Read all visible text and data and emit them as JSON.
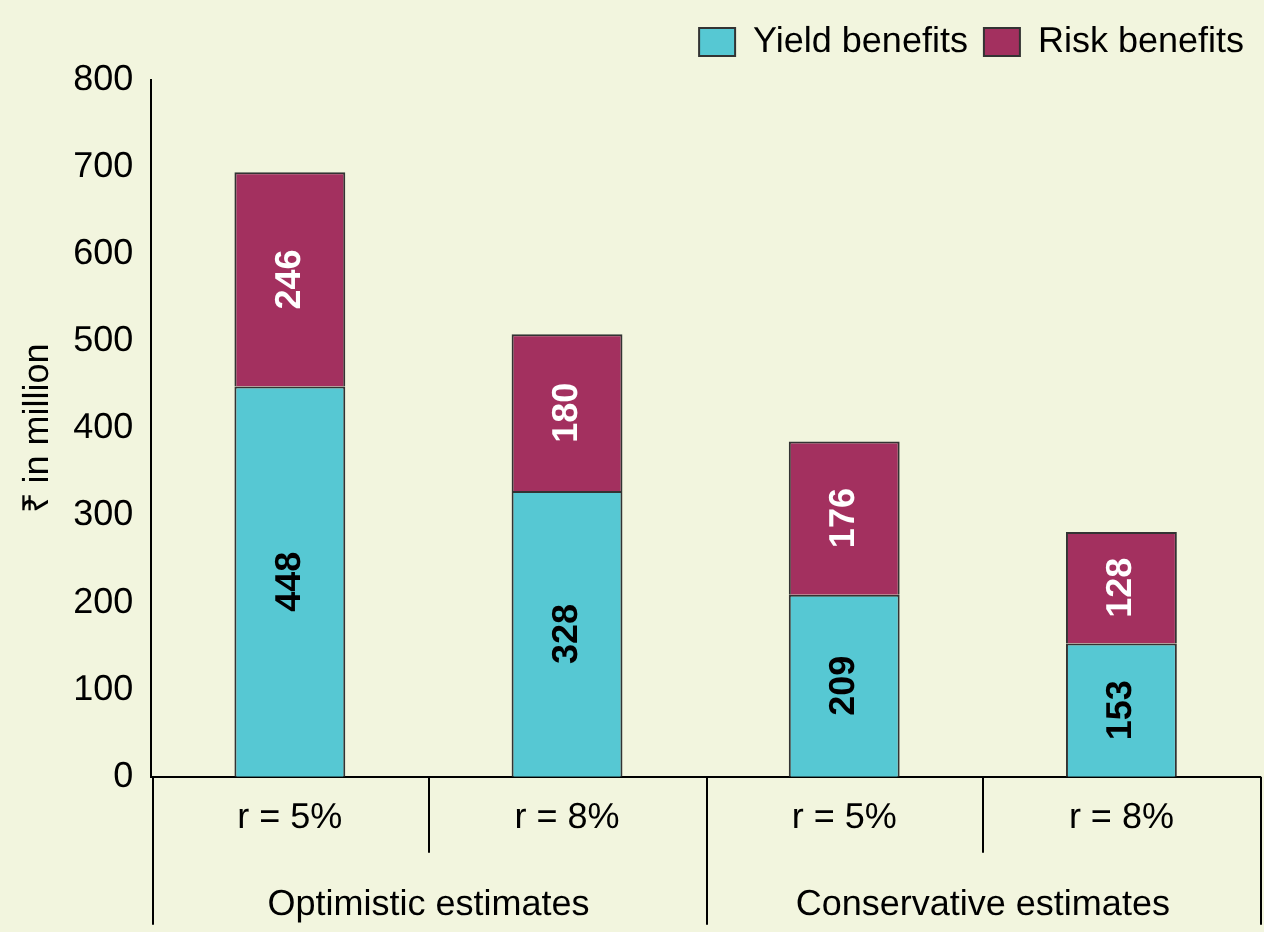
{
  "chart_data": {
    "type": "bar",
    "stacked": true,
    "ylabel": "₹ in million",
    "categories": [
      "r = 5%",
      "r = 8%",
      "r = 5%",
      "r = 8%"
    ],
    "series": [
      {
        "name": "Yield benefits",
        "color": "#56c8d3",
        "values": [
          448,
          328,
          209,
          153
        ]
      },
      {
        "name": "Risk benefits",
        "color": "#a3305f",
        "values": [
          246,
          180,
          176,
          128
        ]
      }
    ],
    "ylim": [
      0,
      800
    ],
    "yticks": [
      0,
      100,
      200,
      300,
      400,
      500,
      600,
      700,
      800
    ],
    "data_labels": true,
    "legend": "top right",
    "grid": false,
    "annotations": [
      "Optimistic estimates",
      "Conservative estimates"
    ]
  }
}
